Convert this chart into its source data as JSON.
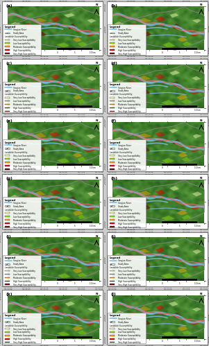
{
  "nrows": 6,
  "ncols": 2,
  "panel_labels": [
    "(a)",
    "(b)",
    "(c)",
    "(d)",
    "(e)",
    "(f)",
    "(g)",
    "(h)",
    "(i)",
    "(j)",
    "(k)",
    "(l)"
  ],
  "terrain_base": "#4a7e35",
  "terrain_colors": [
    "#3a6b28",
    "#4a7e35",
    "#527a30",
    "#3e7230",
    "#58903d",
    "#4d7c33",
    "#3f6e2a",
    "#6aab4a",
    "#547836",
    "#456830"
  ],
  "river_main_color": "#7bbde0",
  "river_edge_color": "#5a9dc8",
  "road_color1": "#e8706a",
  "road_color2": "#d45050",
  "susceptibility_colors": {
    "very_low": "#FFFFBE",
    "low": "#98E600",
    "moderate": "#FFAA00",
    "high": "#E60000",
    "very_high": "#730000"
  },
  "border_inner": "#ffffff",
  "border_outer": "#aaaaaa",
  "coord_top": [
    "110°20'0\"E",
    "110°30'0\"E",
    "110°40'0\"E",
    "110°50'0\"E",
    "111°0'0\"E",
    "111°10'0\"E"
  ],
  "coord_left": [
    "31°10'0\"N",
    "31°5'0\"N",
    "31°0'0\"N"
  ],
  "bg_white": "#ffffff",
  "legend_bg": "#ffffff",
  "map_border": "#888888",
  "outer_bg": "#cccccc"
}
